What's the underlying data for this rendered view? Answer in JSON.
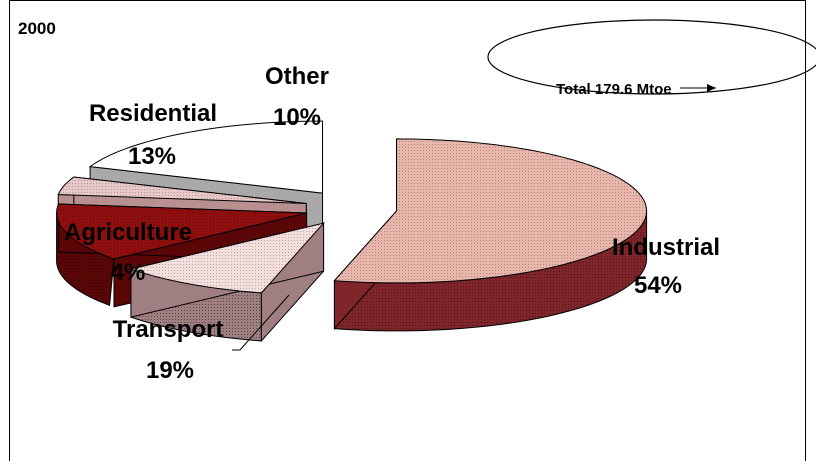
{
  "chart_data": {
    "type": "pie",
    "title": "2000",
    "annotation": "Total 179.6 Mtoe",
    "categories": [
      "Industrial",
      "Other",
      "Residential",
      "Agriculture",
      "Transport"
    ],
    "values": [
      54,
      10,
      13,
      4,
      19
    ],
    "value_labels": [
      "54%",
      "10%",
      "13%",
      "4%",
      "19%"
    ],
    "exploded": true,
    "three_d": true,
    "colors": {
      "Industrial": "#e9b6ac",
      "Other": "#f4dede",
      "Residential": "#8f0e0e",
      "Agriculture": "#e8c8c8",
      "Transport": "#ffffff",
      "Transport_side": "#a9a9a9",
      "Industrial_side": "#80262b",
      "Other_side": "#a07f82",
      "Residential_side": "#5a0606",
      "Agriculture_side": "#b89090",
      "outline": "#000000"
    }
  }
}
